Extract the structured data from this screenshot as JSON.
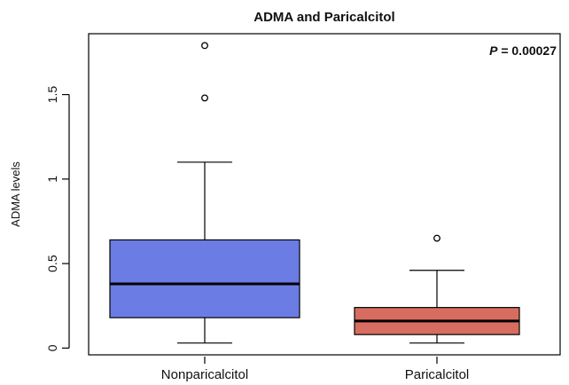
{
  "chart_data": {
    "type": "box",
    "title": "ADMA and Paricalcitol",
    "ylabel": "ADMA levels",
    "xlabel": "",
    "ylim": [
      -0.04,
      1.86
    ],
    "y_ticks": [
      0,
      0.5,
      1,
      1.5
    ],
    "y_tick_labels": [
      "0",
      "0.5",
      "1",
      "1.5"
    ],
    "grid": false,
    "categories": [
      "Nonparicalcitol",
      "Paricalcitol"
    ],
    "boxes": [
      {
        "name": "Nonparicalcitol",
        "whisker_low": 0.03,
        "q1": 0.18,
        "median": 0.38,
        "q3": 0.64,
        "whisker_high": 1.1,
        "outliers": [
          1.48,
          1.79
        ],
        "color": "#6b7de4"
      },
      {
        "name": "Paricalcitol",
        "whisker_low": 0.03,
        "q1": 0.08,
        "median": 0.16,
        "q3": 0.24,
        "whisker_high": 0.46,
        "outliers": [
          0.65
        ],
        "color": "#d76d61"
      }
    ],
    "annotation": {
      "prefix": "P",
      "text": " = 0.00027"
    }
  }
}
